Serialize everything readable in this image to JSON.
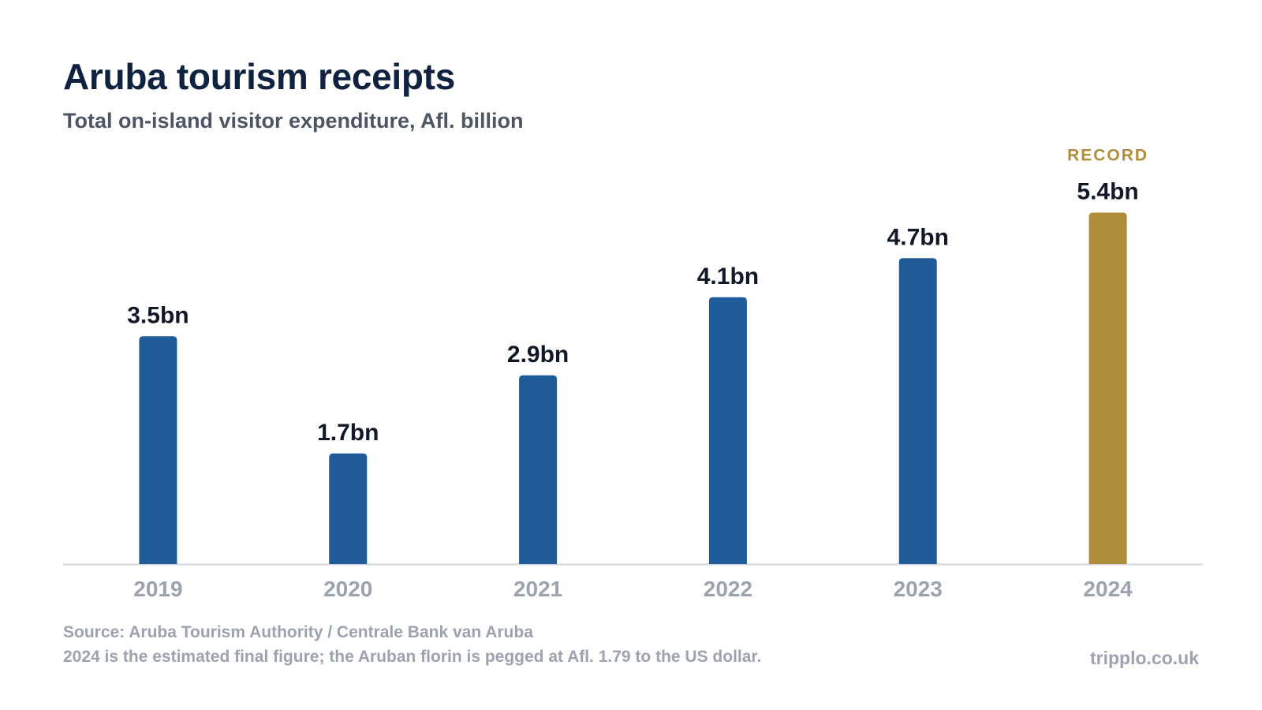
{
  "header": {
    "title": "Aruba tourism receipts",
    "subtitle": "Total on-island visitor expenditure, Afl. billion"
  },
  "chart_data": {
    "type": "bar",
    "title": "Aruba tourism receipts",
    "subtitle": "Total on-island visitor expenditure, Afl. billion",
    "categories": [
      "2019",
      "2020",
      "2021",
      "2022",
      "2023",
      "2024"
    ],
    "values": [
      3.5,
      1.7,
      2.9,
      4.1,
      4.7,
      5.4
    ],
    "data_labels": [
      "3.5bn",
      "1.7bn",
      "2.9bn",
      "4.1bn",
      "4.7bn",
      "5.4bn"
    ],
    "annotation": {
      "category": "2024",
      "text": "RECORD"
    },
    "highlight_category": "2024",
    "colors": {
      "bar": "#1f5c99",
      "highlight": "#b08d3a",
      "axis": "#d1d5db",
      "tick": "#9ca3af",
      "label": "#111827"
    },
    "ylim": [
      0,
      6.0
    ],
    "grid": false,
    "xlabel": "",
    "ylabel": ""
  },
  "footer": {
    "source": "Source: Aruba Tourism Authority / Centrale Bank van Aruba",
    "note": "2024 is the estimated final figure; the Aruban florin is pegged at Afl. 1.79 to the US dollar.",
    "brand": "tripplo.co.uk"
  }
}
